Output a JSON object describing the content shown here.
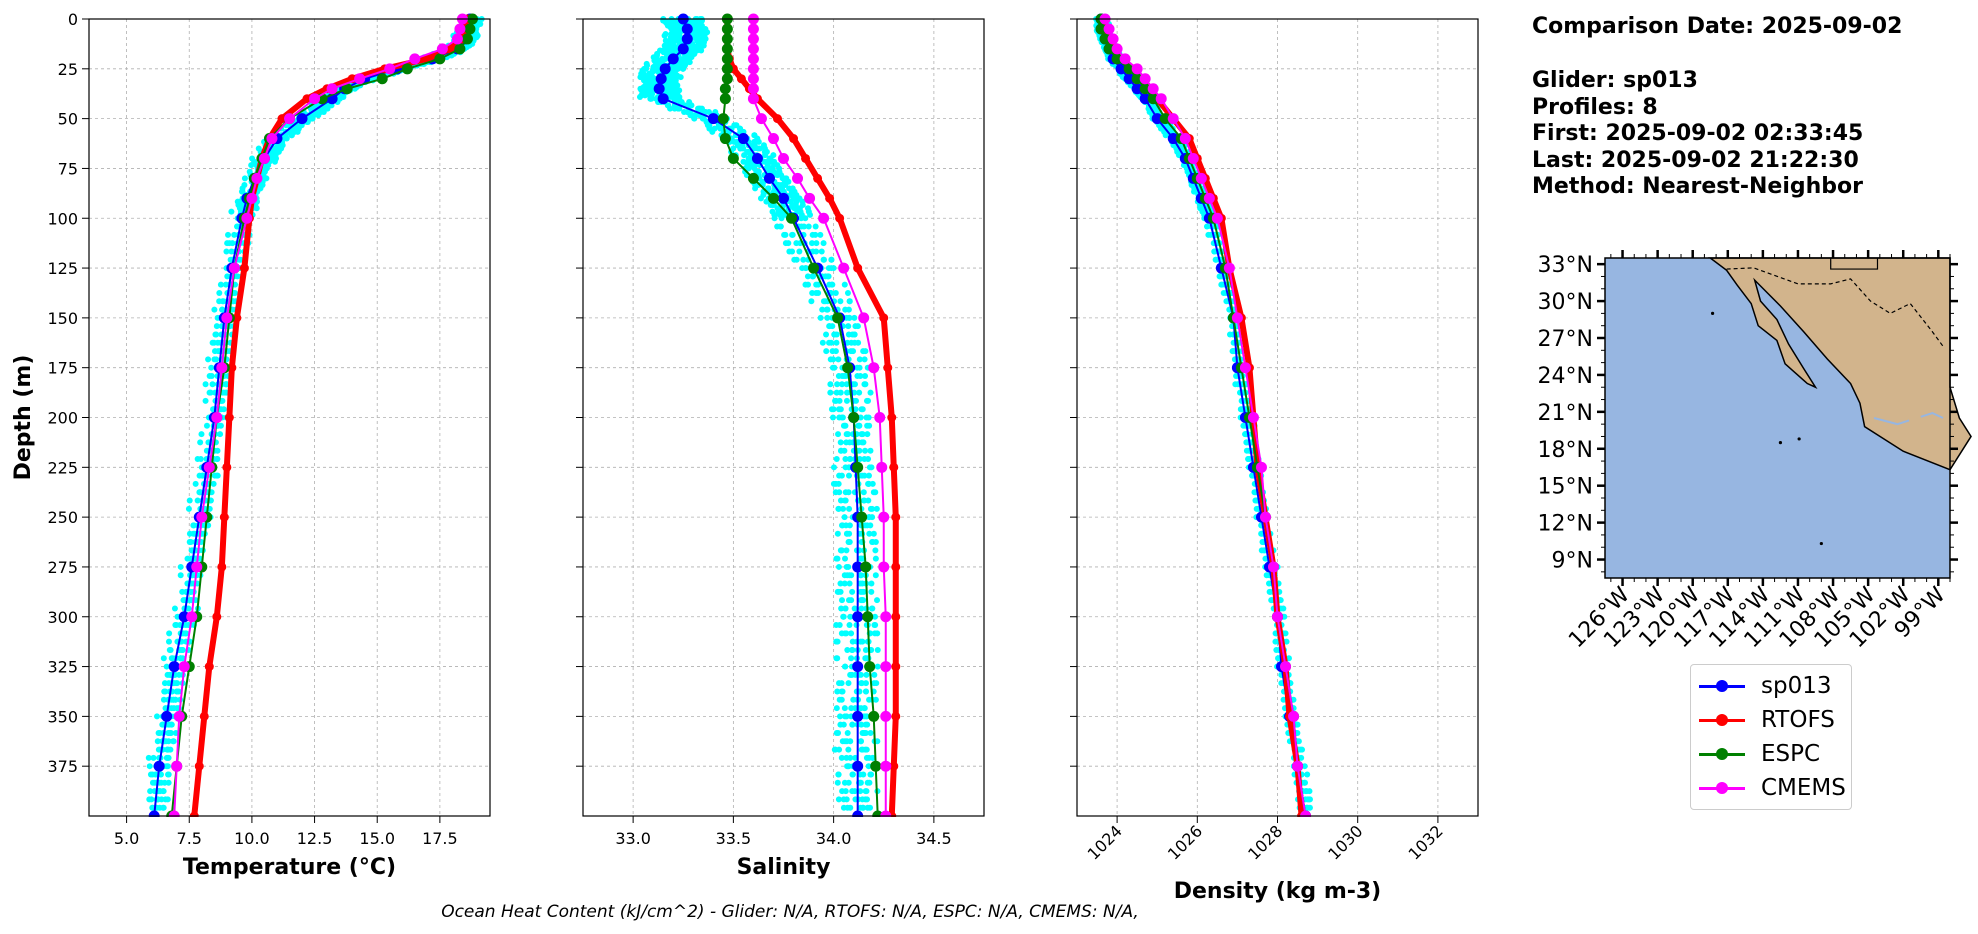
{
  "info": {
    "comparison": "Comparison Date: 2025-09-02",
    "glider": "Glider: sp013",
    "profiles": "Profiles: 8",
    "first": "First: 2025-09-02 02:33:45",
    "last": "Last: 2025-09-02 21:22:30",
    "method": "Method: Nearest-Neighbor"
  },
  "footer": "Ocean Heat Content (kJ/cm^2) - Glider: N/A,  RTOFS: N/A,  ESPC: N/A,  CMEMS: N/A,",
  "legend": [
    {
      "name": "sp013",
      "color": "#0000ff"
    },
    {
      "name": "RTOFS",
      "color": "#ff0000"
    },
    {
      "name": "ESPC",
      "color": "#008000"
    },
    {
      "name": "CMEMS",
      "color": "#ff00ff"
    }
  ],
  "map": {
    "lat_labels": [
      "33°N",
      "30°N",
      "27°N",
      "24°N",
      "21°N",
      "18°N",
      "15°N",
      "12°N",
      "9°N"
    ],
    "lon_labels": [
      "126°W",
      "123°W",
      "120°W",
      "117°W",
      "114°W",
      "111°W",
      "108°W",
      "105°W",
      "102°W",
      "99°W"
    ],
    "ocean_color": "#97b6e1",
    "land_color": "#d2b48c"
  },
  "chart_data": [
    {
      "type": "line",
      "xlabel": "Temperature (°C)",
      "ylabel": "Depth (m)",
      "xlim": [
        3.5,
        19.5
      ],
      "ylim": [
        400,
        0
      ],
      "xticks": [
        5.0,
        7.5,
        10.0,
        12.5,
        15.0,
        17.5
      ],
      "yticks": [
        0,
        25,
        50,
        75,
        100,
        125,
        150,
        175,
        200,
        225,
        250,
        275,
        300,
        325,
        350,
        375
      ],
      "grid": true,
      "depth": [
        0,
        5,
        10,
        15,
        20,
        25,
        30,
        35,
        40,
        50,
        60,
        70,
        80,
        90,
        100,
        125,
        150,
        175,
        200,
        225,
        250,
        275,
        300,
        325,
        350,
        375,
        400
      ],
      "series": [
        {
          "name": "sp013",
          "color": "#0000ff",
          "values": [
            18.7,
            18.6,
            18.5,
            18.2,
            17.2,
            15.8,
            14.5,
            13.7,
            13.2,
            12.0,
            11.0,
            10.5,
            10.1,
            9.8,
            9.6,
            9.2,
            8.9,
            8.7,
            8.5,
            8.2,
            7.9,
            7.6,
            7.3,
            6.9,
            6.6,
            6.3,
            6.1
          ]
        },
        {
          "name": "RTOFS",
          "color": "#ff0000",
          "values": [
            18.6,
            18.5,
            18.4,
            17.9,
            17.0,
            15.3,
            14.0,
            13.0,
            12.2,
            11.2,
            10.7,
            10.4,
            10.2,
            10.0,
            9.9,
            9.7,
            9.4,
            9.2,
            9.1,
            9.0,
            8.9,
            8.8,
            8.6,
            8.3,
            8.1,
            7.9,
            7.7
          ]
        },
        {
          "name": "ESPC",
          "color": "#008000",
          "values": [
            18.8,
            18.7,
            18.6,
            18.3,
            17.5,
            16.2,
            15.2,
            13.8,
            12.8,
            11.5,
            10.7,
            10.4,
            10.1,
            9.9,
            9.7,
            9.3,
            9.1,
            8.9,
            8.6,
            8.4,
            8.2,
            8.0,
            7.8,
            7.5,
            7.2,
            7.0,
            6.8
          ]
        },
        {
          "name": "CMEMS",
          "color": "#ff00ff",
          "values": [
            18.4,
            18.3,
            18.2,
            17.6,
            16.5,
            15.5,
            14.3,
            13.2,
            12.5,
            11.5,
            10.8,
            10.5,
            10.2,
            10.0,
            9.8,
            9.3,
            9.0,
            8.8,
            8.6,
            8.3,
            8.0,
            7.8,
            7.6,
            7.3,
            7.1,
            7.0,
            6.9
          ]
        }
      ]
    },
    {
      "type": "line",
      "xlabel": "Salinity",
      "xlim": [
        32.75,
        34.75
      ],
      "ylim": [
        400,
        0
      ],
      "xticks": [
        33.0,
        33.5,
        34.0,
        34.5
      ],
      "grid": true,
      "depth": [
        0,
        5,
        10,
        15,
        20,
        25,
        30,
        35,
        40,
        50,
        60,
        70,
        80,
        90,
        100,
        125,
        150,
        175,
        200,
        225,
        250,
        275,
        300,
        325,
        350,
        375,
        400
      ],
      "series": [
        {
          "name": "sp013",
          "color": "#0000ff",
          "values": [
            33.25,
            33.27,
            33.27,
            33.25,
            33.2,
            33.16,
            33.14,
            33.13,
            33.15,
            33.4,
            33.55,
            33.62,
            33.68,
            33.75,
            33.8,
            33.92,
            34.03,
            34.08,
            34.1,
            34.11,
            34.12,
            34.12,
            34.12,
            34.12,
            34.12,
            34.12,
            34.12
          ]
        },
        {
          "name": "RTOFS",
          "color": "#ff0000",
          "values": [
            33.47,
            33.47,
            33.47,
            33.47,
            33.48,
            33.5,
            33.54,
            33.58,
            33.62,
            33.72,
            33.8,
            33.86,
            33.92,
            33.98,
            34.03,
            34.12,
            34.25,
            34.27,
            34.29,
            34.3,
            34.31,
            34.31,
            34.31,
            34.31,
            34.31,
            34.3,
            34.29
          ]
        },
        {
          "name": "ESPC",
          "color": "#008000",
          "values": [
            33.47,
            33.47,
            33.47,
            33.47,
            33.47,
            33.47,
            33.47,
            33.46,
            33.46,
            33.45,
            33.46,
            33.5,
            33.6,
            33.7,
            33.79,
            33.9,
            34.02,
            34.07,
            34.1,
            34.12,
            34.14,
            34.16,
            34.17,
            34.18,
            34.2,
            34.21,
            34.22
          ]
        },
        {
          "name": "CMEMS",
          "color": "#ff00ff",
          "values": [
            33.6,
            33.6,
            33.6,
            33.6,
            33.6,
            33.6,
            33.6,
            33.6,
            33.6,
            33.64,
            33.7,
            33.75,
            33.82,
            33.88,
            33.95,
            34.05,
            34.15,
            34.2,
            34.23,
            34.24,
            34.25,
            34.25,
            34.26,
            34.26,
            34.26,
            34.26,
            34.26
          ]
        }
      ]
    },
    {
      "type": "line",
      "xlabel": "Density (kg m-3)",
      "xlim": [
        1023,
        1033
      ],
      "ylim": [
        400,
        0
      ],
      "xticks": [
        1024,
        1026,
        1028,
        1030,
        1032
      ],
      "grid": true,
      "depth": [
        0,
        5,
        10,
        15,
        20,
        25,
        30,
        35,
        40,
        50,
        60,
        70,
        80,
        90,
        100,
        125,
        150,
        175,
        200,
        225,
        250,
        275,
        300,
        325,
        350,
        375,
        400
      ],
      "series": [
        {
          "name": "sp013",
          "color": "#0000ff",
          "values": [
            1023.6,
            1023.6,
            1023.7,
            1023.8,
            1023.9,
            1024.1,
            1024.3,
            1024.5,
            1024.7,
            1025.0,
            1025.4,
            1025.7,
            1025.9,
            1026.1,
            1026.3,
            1026.6,
            1026.9,
            1027.0,
            1027.2,
            1027.4,
            1027.6,
            1027.8,
            1028.0,
            1028.1,
            1028.3,
            1028.5,
            1028.7
          ]
        },
        {
          "name": "RTOFS",
          "color": "#ff0000",
          "values": [
            1023.7,
            1023.7,
            1023.8,
            1023.9,
            1024.1,
            1024.4,
            1024.6,
            1024.8,
            1025.0,
            1025.4,
            1025.8,
            1026.0,
            1026.2,
            1026.4,
            1026.6,
            1026.8,
            1027.1,
            1027.3,
            1027.4,
            1027.5,
            1027.7,
            1027.9,
            1028.0,
            1028.2,
            1028.3,
            1028.5,
            1028.6
          ]
        },
        {
          "name": "ESPC",
          "color": "#008000",
          "values": [
            1023.6,
            1023.6,
            1023.7,
            1023.8,
            1024.0,
            1024.3,
            1024.5,
            1024.7,
            1024.9,
            1025.2,
            1025.6,
            1025.8,
            1026.0,
            1026.2,
            1026.4,
            1026.7,
            1026.9,
            1027.1,
            1027.3,
            1027.5,
            1027.7,
            1027.9,
            1028.0,
            1028.2,
            1028.4,
            1028.5,
            1028.7
          ]
        },
        {
          "name": "CMEMS",
          "color": "#ff00ff",
          "values": [
            1023.7,
            1023.8,
            1023.9,
            1024.0,
            1024.2,
            1024.5,
            1024.7,
            1024.9,
            1025.1,
            1025.4,
            1025.7,
            1025.9,
            1026.1,
            1026.3,
            1026.5,
            1026.8,
            1027.0,
            1027.2,
            1027.4,
            1027.6,
            1027.7,
            1027.9,
            1028.0,
            1028.2,
            1028.4,
            1028.5,
            1028.7
          ]
        }
      ]
    }
  ]
}
